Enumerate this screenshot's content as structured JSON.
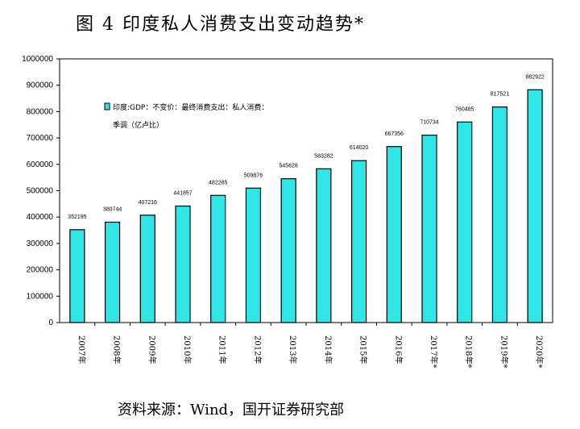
{
  "title": "图 4 印度私人消费支出变动趋势*",
  "source": "资料来源：Wind，国开证券研究部",
  "chart_data": {
    "type": "bar",
    "categories": [
      "2007年",
      "2008年",
      "2009年",
      "2010年",
      "2011年",
      "2012年",
      "2013年",
      "2014年",
      "2015年",
      "2016年",
      "2017年*",
      "2018年*",
      "2019年*",
      "2020年*"
    ],
    "series": [
      {
        "name": "印度:GDP：不变价：最终消费支出：私人消费：季调（亿卢比）",
        "values": [
          352195,
          380744,
          407216,
          441857,
          482285,
          509876,
          545628,
          583282,
          614020,
          667356,
          710734,
          760485,
          817521,
          882922
        ],
        "data_labels": [
          "352195",
          "380744",
          "407216",
          "441857",
          "482285",
          "509876",
          "545628",
          "583282",
          "614020",
          "667356",
          "710734",
          "760485",
          "817521",
          "882922"
        ],
        "color": "#2ee6e6"
      }
    ],
    "yticks": [
      "0",
      "100000",
      "200000",
      "300000",
      "400000",
      "500000",
      "600000",
      "700000",
      "800000",
      "900000",
      "1000000"
    ],
    "ylim": [
      0,
      1000000
    ],
    "legend_lines": [
      "印度:GDP：不变价：最终消费支出：私人消费：",
      "季调（亿卢比）"
    ],
    "legend_position": "top-left",
    "grid": false
  }
}
